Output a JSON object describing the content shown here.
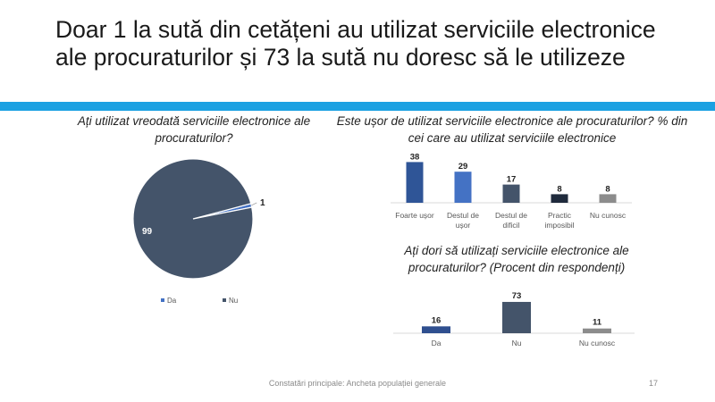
{
  "slide": {
    "title": "Doar 1 la sută din cetățeni au utilizat serviciile electronice ale procuraturilor și 73 la sută nu doresc să le utilizeze",
    "footer": "Constatări principale: Ancheta populației generale",
    "page_number": "17",
    "accent_color": "#1ba1e2"
  },
  "chart_data": [
    {
      "type": "pie",
      "title": "Ați utilizat vreodată serviciile electronice ale procuraturilor?",
      "categories": [
        "Da",
        "Nu"
      ],
      "values": [
        1,
        99
      ],
      "data_labels": [
        "1",
        "99"
      ],
      "colors": [
        "#4472c4",
        "#44546a"
      ],
      "legend": [
        "Da",
        "Nu"
      ],
      "legend_position": "bottom"
    },
    {
      "type": "bar",
      "title": "Este ușor de utilizat serviciile electronice ale procuraturilor? %  din cei care au utilizat serviciile electronice",
      "categories": [
        "Foarte ușor",
        "Destul de ușor",
        "Destul de dificil",
        "Practic imposibil",
        "Nu cunosc"
      ],
      "category_lines": [
        [
          "Foarte ușor"
        ],
        [
          "Destul de",
          "ușor"
        ],
        [
          "Destul de",
          "dificil"
        ],
        [
          "Practic",
          "imposibil"
        ],
        [
          "Nu cunosc"
        ]
      ],
      "values": [
        38,
        29,
        17,
        8,
        8
      ],
      "colors": [
        "#2f5597",
        "#4472c4",
        "#44546a",
        "#1f2a3c",
        "#8c8c8c"
      ],
      "ylim": [
        0,
        40
      ]
    },
    {
      "type": "bar",
      "title": "Ați dori să utilizați serviciile electronice ale procuraturilor? (Procent din respondenți)",
      "categories": [
        "Da",
        "Nu",
        "Nu cunosc"
      ],
      "values": [
        16,
        73,
        11
      ],
      "colors": [
        "#2f4f8f",
        "#44546a",
        "#8c8c8c"
      ],
      "ylim": [
        0,
        75
      ]
    }
  ]
}
